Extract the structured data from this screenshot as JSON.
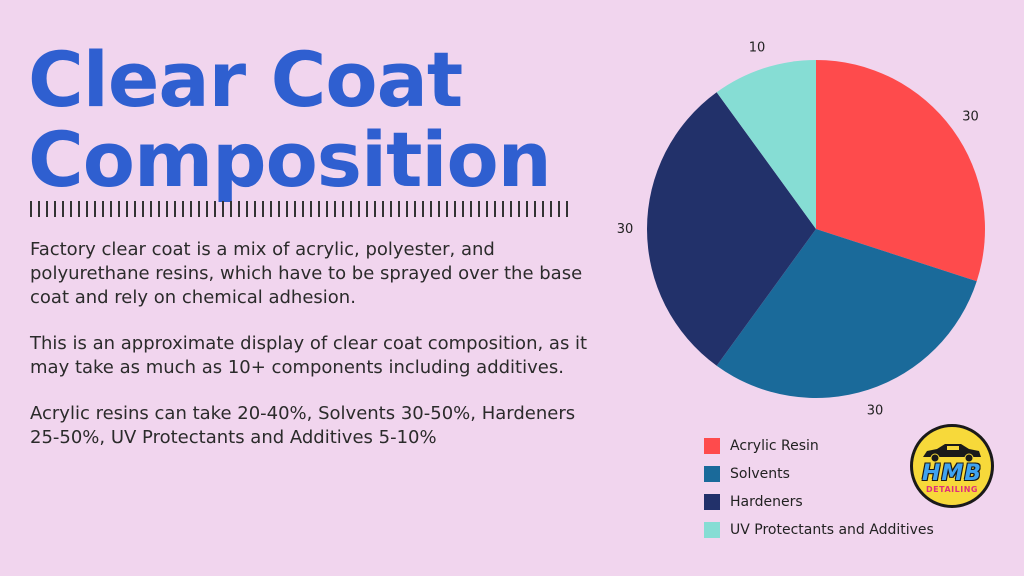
{
  "heading": {
    "line1": "Clear Coat",
    "line2": "Composition"
  },
  "description": {
    "p1": "Factory clear coat is a mix of acrylic, polyester, and polyurethane resins, which have to be sprayed over the base coat and rely on chemical adhesion.",
    "p2": "This is an approximate display of clear coat composition, as it may take as much as 10+ components including additives.",
    "p3": "Acrylic resins can take 20-40%, Solvents 30-50%, Hardeners 25-50%, UV Protectants and Additives 5-10%"
  },
  "logo": {
    "main": "HMB",
    "sub": "DETAILING",
    "icon": "car-icon"
  },
  "chart_data": {
    "type": "pie",
    "categories": [
      "Acrylic Resin",
      "Solvents",
      "Hardeners",
      "UV Protectants and Additives"
    ],
    "values": [
      30,
      30,
      30,
      10
    ],
    "colors": [
      "#fe4b4c",
      "#1a6a9a",
      "#22316a",
      "#86ddd4"
    ],
    "start_angle_deg": 0,
    "direction": "clockwise",
    "data_labels": true,
    "legend": "bottom-right"
  }
}
